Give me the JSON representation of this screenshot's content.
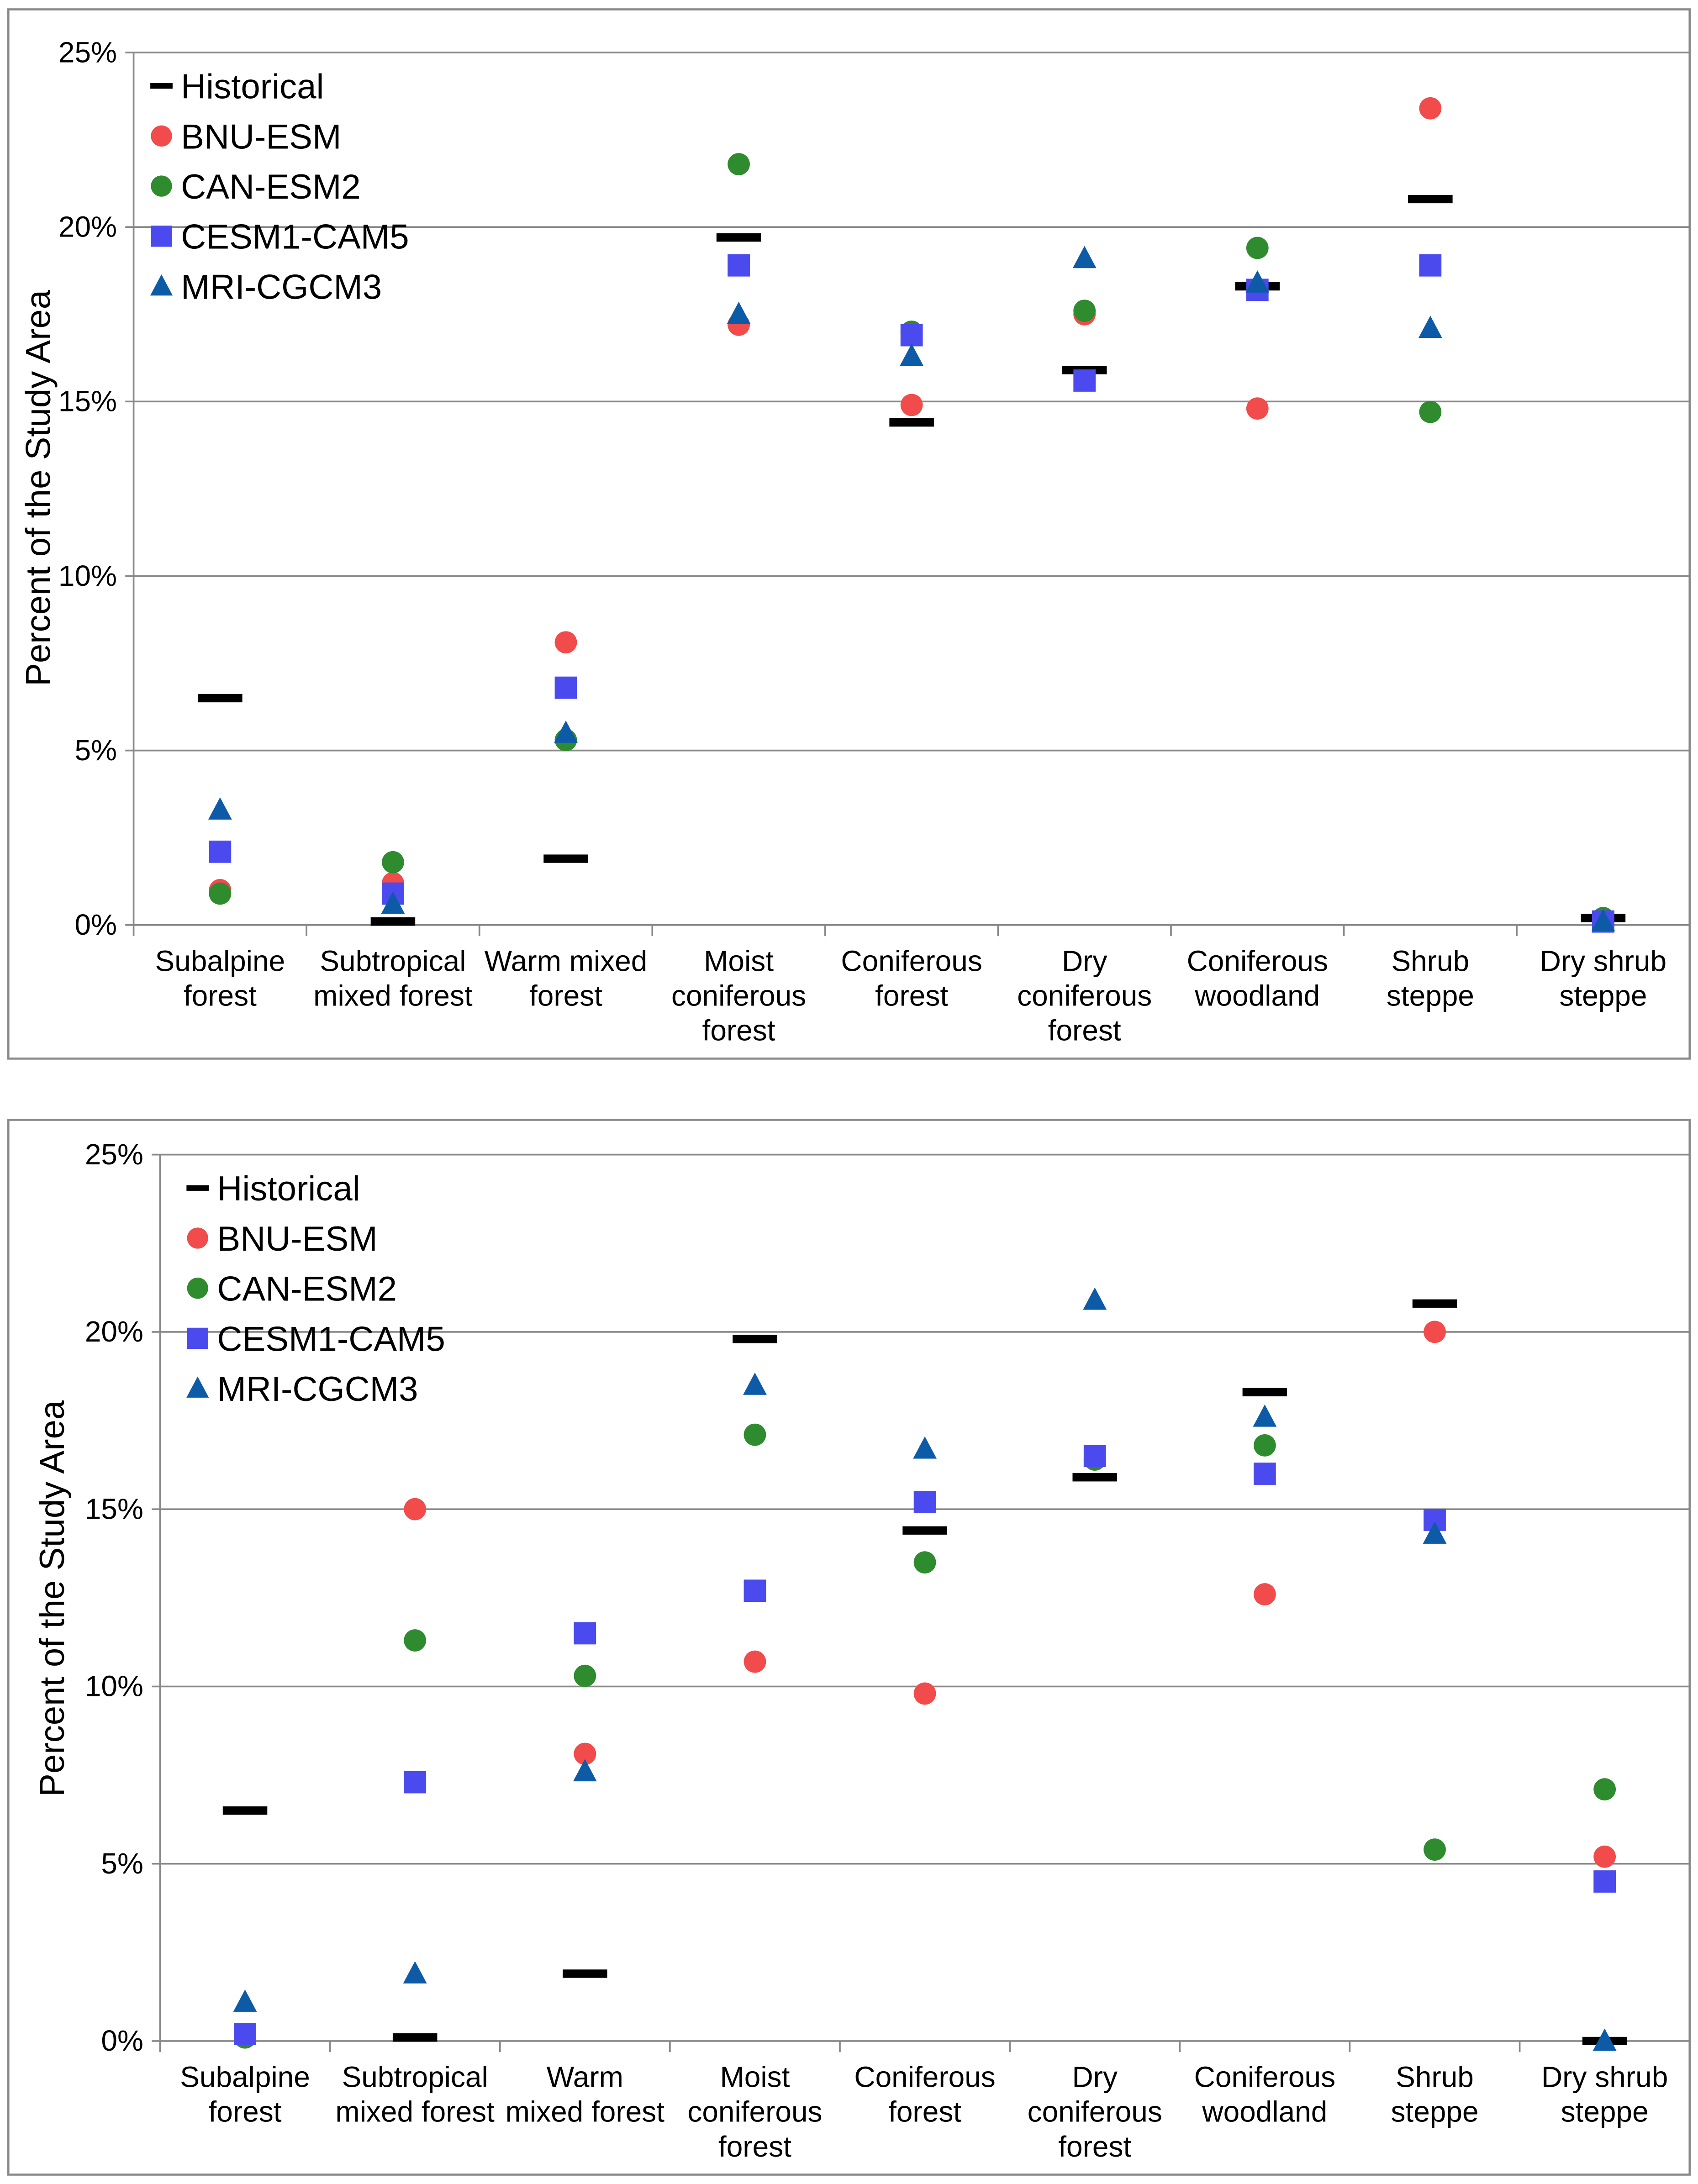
{
  "chart_data": [
    {
      "type": "scatter",
      "title": "",
      "ylabel": "Percent of the Study Area",
      "xlabel": "",
      "ylim": [
        0,
        25
      ],
      "yticks": [
        "0%",
        "5%",
        "10%",
        "15%",
        "20%",
        "25%"
      ],
      "grid": true,
      "legend_position": "top-left",
      "categories": [
        "Subalpine forest",
        "Subtropical mixed forest",
        "Warm mixed forest",
        "Moist coniferous forest",
        "Coniferous forest",
        "Dry coniferous forest",
        "Coniferous woodland",
        "Shrub steppe",
        "Dry shrub steppe"
      ],
      "category_lines": [
        [
          "Subalpine",
          "forest"
        ],
        [
          "Subtropical",
          "mixed forest"
        ],
        [
          "Warm mixed",
          "forest"
        ],
        [
          "Moist",
          "coniferous",
          "forest"
        ],
        [
          "Coniferous",
          "forest"
        ],
        [
          "Dry",
          "coniferous",
          "forest"
        ],
        [
          "Coniferous",
          "woodland"
        ],
        [
          "Shrub",
          "steppe"
        ],
        [
          "Dry shrub",
          "steppe"
        ]
      ],
      "series": [
        {
          "name": "Historical",
          "marker": "dash",
          "color": "#000000",
          "values": [
            6.5,
            0.1,
            1.9,
            19.7,
            14.4,
            15.9,
            18.3,
            20.8,
            0.2
          ]
        },
        {
          "name": "BNU-ESM",
          "marker": "circle",
          "color": "#f24b4b",
          "values": [
            1.0,
            1.2,
            8.1,
            17.2,
            14.9,
            17.5,
            14.8,
            23.4,
            0.1
          ]
        },
        {
          "name": "CAN-ESM2",
          "marker": "circle",
          "color": "#2e8b2e",
          "values": [
            0.9,
            1.8,
            5.3,
            21.8,
            17.0,
            17.6,
            19.4,
            14.7,
            0.2
          ]
        },
        {
          "name": "CESM1-CAM5",
          "marker": "square",
          "color": "#4a4aee",
          "values": [
            2.1,
            0.9,
            6.8,
            18.9,
            16.9,
            15.6,
            18.2,
            18.9,
            0.1
          ]
        },
        {
          "name": "MRI-CGCM3",
          "marker": "triangle",
          "color": "#0d5aa7",
          "values": [
            3.3,
            0.6,
            5.5,
            17.5,
            16.3,
            19.1,
            18.4,
            17.1,
            0.1
          ]
        }
      ]
    },
    {
      "type": "scatter",
      "title": "",
      "ylabel": "Percent of the Study Area",
      "xlabel": "",
      "ylim": [
        0,
        25
      ],
      "yticks": [
        "0%",
        "5%",
        "10%",
        "15%",
        "20%",
        "25%"
      ],
      "grid": true,
      "legend_position": "top-left",
      "categories": [
        "Subalpine forest",
        "Subtropical mixed forest",
        "Warm mixed forest",
        "Moist coniferous forest",
        "Coniferous forest",
        "Dry coniferous forest",
        "Coniferous woodland",
        "Shrub steppe",
        "Dry shrub steppe"
      ],
      "category_lines": [
        [
          "Subalpine",
          "forest"
        ],
        [
          "Subtropical",
          "mixed forest"
        ],
        [
          "Warm",
          "mixed forest"
        ],
        [
          "Moist",
          "coniferous",
          "forest"
        ],
        [
          "Coniferous",
          "forest"
        ],
        [
          "Dry",
          "coniferous",
          "forest"
        ],
        [
          "Coniferous",
          "woodland"
        ],
        [
          "Shrub",
          "steppe"
        ],
        [
          "Dry shrub",
          "steppe"
        ]
      ],
      "series": [
        {
          "name": "Historical",
          "marker": "dash",
          "color": "#000000",
          "values": [
            6.5,
            0.1,
            1.9,
            19.8,
            14.4,
            15.9,
            18.3,
            20.8,
            0.0
          ]
        },
        {
          "name": "BNU-ESM",
          "marker": "circle",
          "color": "#f24b4b",
          "values": [
            0.1,
            15.0,
            8.1,
            10.7,
            9.8,
            16.4,
            12.6,
            20.0,
            5.2
          ]
        },
        {
          "name": "CAN-ESM2",
          "marker": "circle",
          "color": "#2e8b2e",
          "values": [
            0.1,
            11.3,
            10.3,
            17.1,
            13.5,
            16.4,
            16.8,
            5.4,
            7.1
          ]
        },
        {
          "name": "CESM1-CAM5",
          "marker": "square",
          "color": "#4a4aee",
          "values": [
            0.2,
            7.3,
            11.5,
            12.7,
            15.2,
            16.5,
            16.0,
            14.7,
            4.5
          ]
        },
        {
          "name": "MRI-CGCM3",
          "marker": "triangle",
          "color": "#0d5aa7",
          "values": [
            1.1,
            1.9,
            7.6,
            18.5,
            16.7,
            20.9,
            17.6,
            14.3,
            0.0
          ]
        }
      ]
    }
  ]
}
